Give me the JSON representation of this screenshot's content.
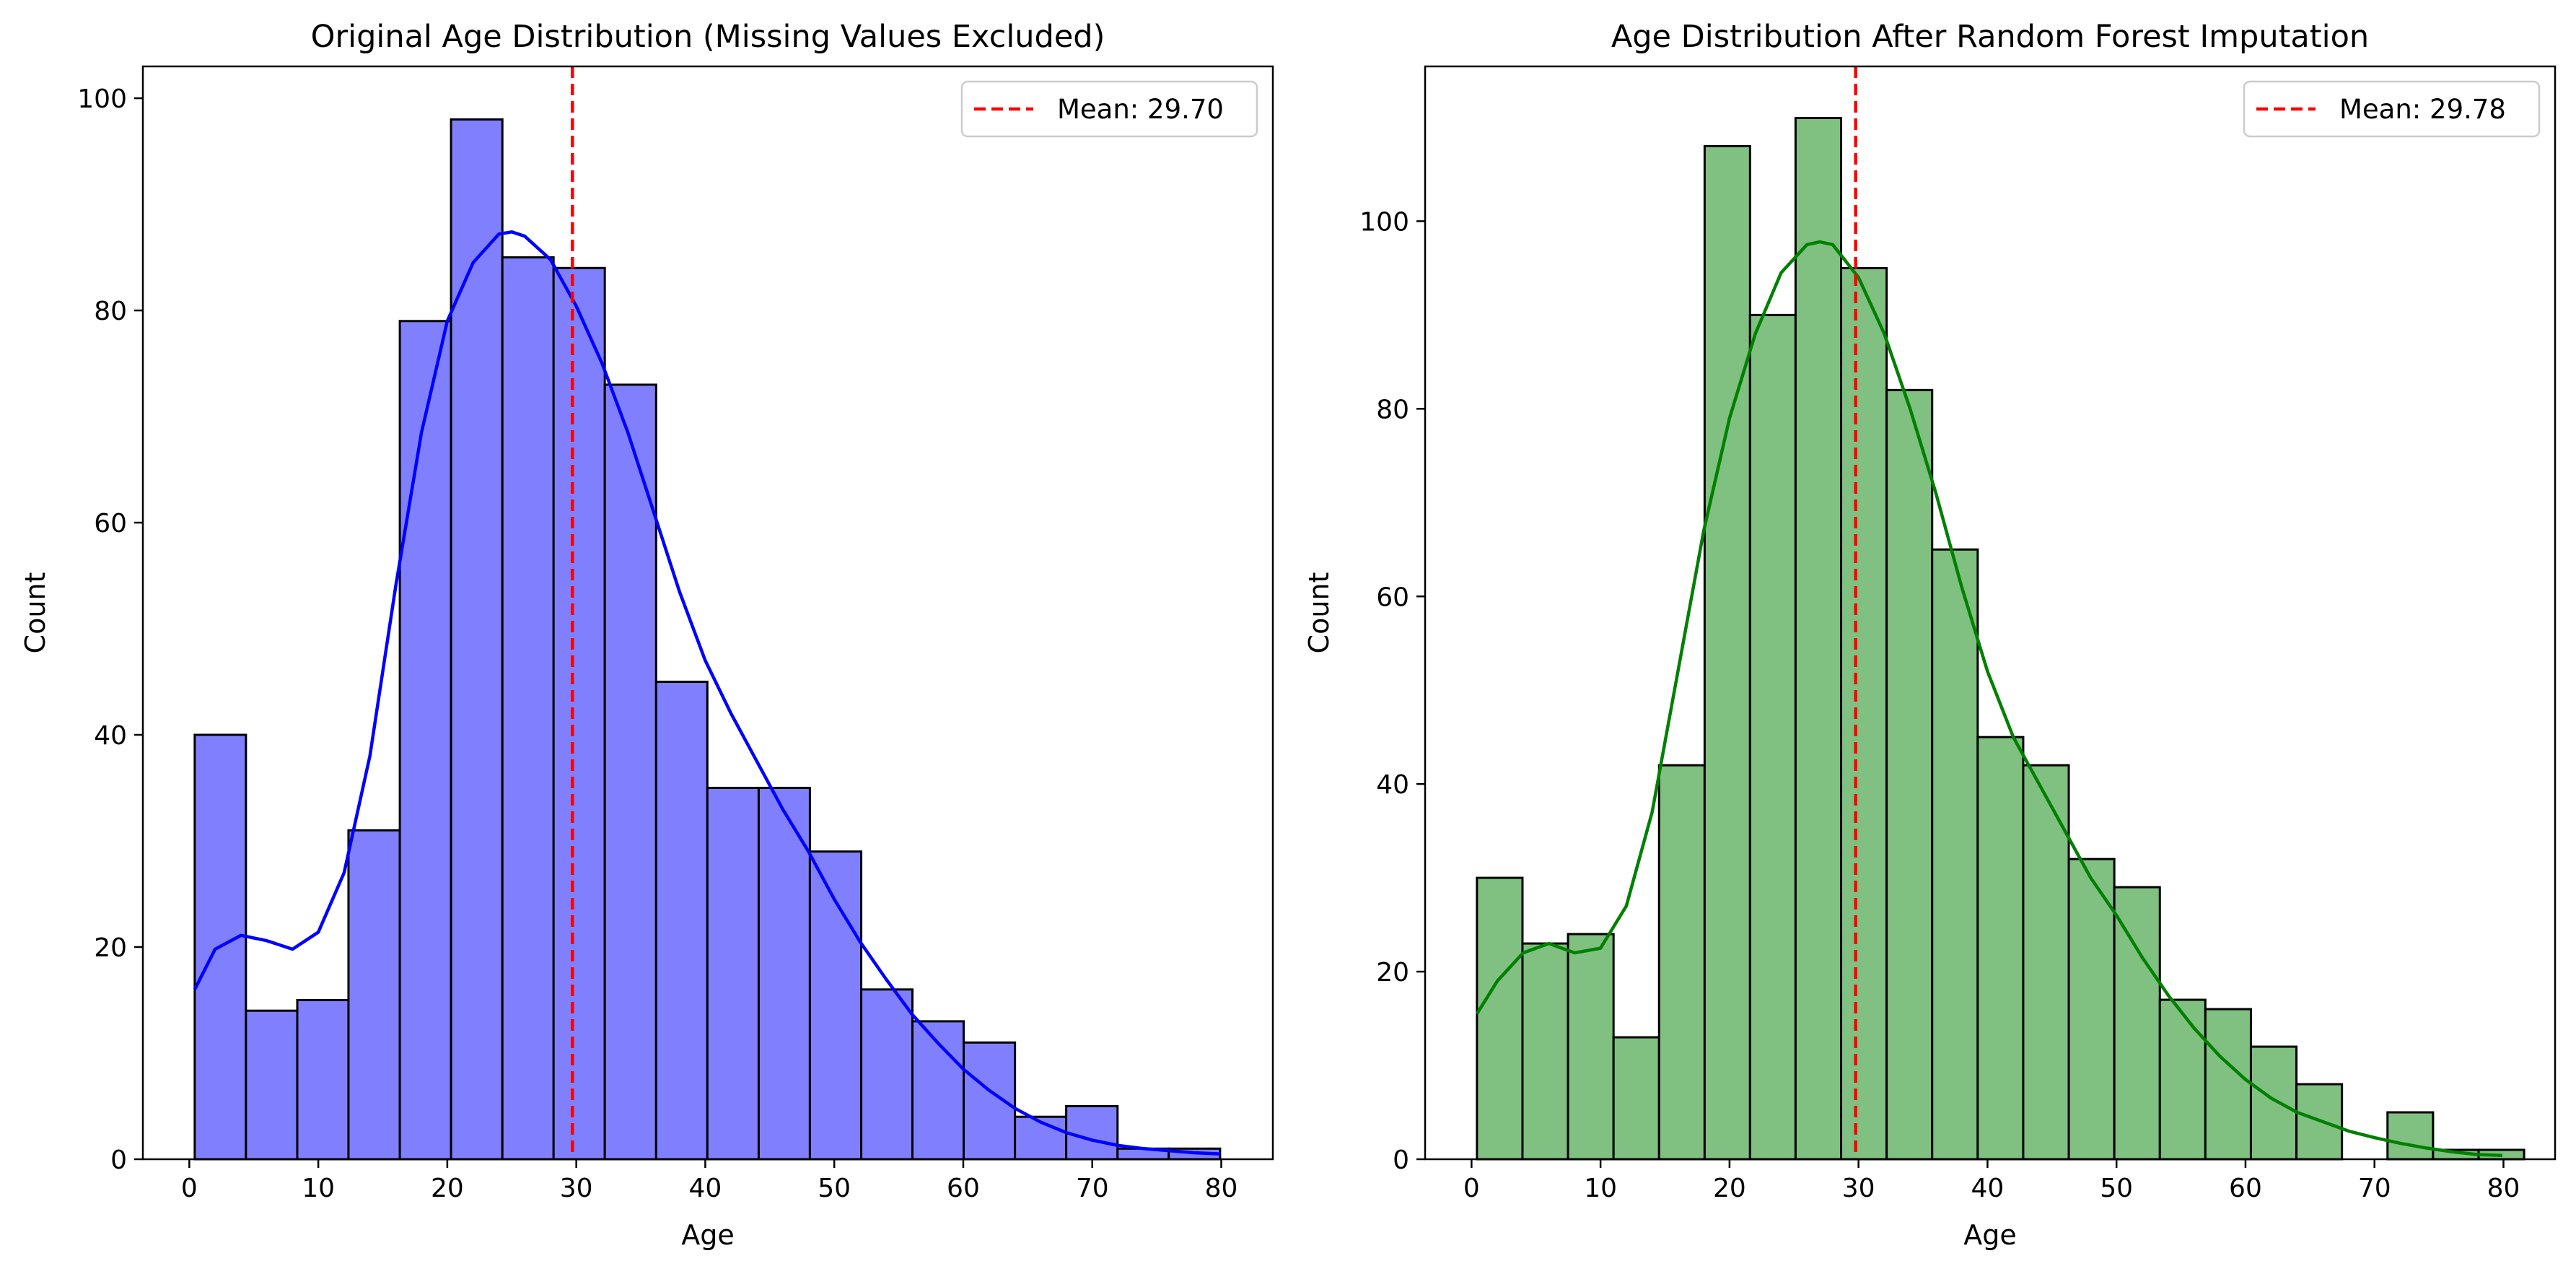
{
  "chart_data": [
    {
      "type": "bar",
      "subtype": "histogram-with-kde",
      "title": "Original Age Distribution (Missing Values Excluded)",
      "xlabel": "Age",
      "ylabel": "Count",
      "xlim": [
        -3.6,
        84.0
      ],
      "ylim": [
        0,
        103
      ],
      "xticks": [
        0,
        10,
        20,
        30,
        40,
        50,
        60,
        70,
        80
      ],
      "yticks": [
        0,
        20,
        40,
        60,
        80,
        100
      ],
      "grid": false,
      "legend_position": "top-right",
      "bar_color": "#8080ff",
      "line_color": "#0000ff",
      "bins": [
        [
          0.42,
          4.39
        ],
        [
          4.39,
          8.37
        ],
        [
          8.37,
          12.34
        ],
        [
          12.34,
          16.32
        ],
        [
          16.32,
          20.29
        ],
        [
          20.29,
          24.27
        ],
        [
          24.27,
          28.24
        ],
        [
          28.24,
          32.21
        ],
        [
          32.21,
          36.19
        ],
        [
          36.19,
          40.16
        ],
        [
          40.16,
          44.14
        ],
        [
          44.14,
          48.11
        ],
        [
          48.11,
          52.09
        ],
        [
          52.09,
          56.06
        ],
        [
          56.06,
          60.03
        ],
        [
          60.03,
          64.01
        ],
        [
          64.01,
          67.98
        ],
        [
          67.98,
          71.96
        ],
        [
          71.96,
          75.93
        ],
        [
          75.93,
          79.91
        ]
      ],
      "values": [
        40,
        14,
        15,
        31,
        79,
        98,
        85,
        84,
        73,
        45,
        35,
        35,
        29,
        16,
        13,
        11,
        4,
        5,
        1,
        1
      ],
      "kde": {
        "x": [
          0.42,
          2,
          4,
          6,
          8,
          10,
          12,
          14,
          16,
          18,
          20,
          22,
          24,
          25,
          26,
          28,
          30,
          32,
          34,
          36,
          38,
          40,
          42,
          44,
          46,
          48,
          50,
          52,
          54,
          56,
          58,
          60,
          62,
          64,
          66,
          68,
          70,
          72,
          74,
          76,
          78,
          79.91
        ],
        "y": [
          16,
          19.8,
          21.1,
          20.6,
          19.8,
          21.4,
          27,
          38,
          54,
          68.5,
          79,
          84.5,
          87.2,
          87.4,
          87,
          84.8,
          80.4,
          75,
          68.5,
          61,
          53.5,
          47,
          42,
          37.5,
          33,
          29,
          24.5,
          20.5,
          17,
          13.7,
          11,
          8.5,
          6.5,
          4.8,
          3.5,
          2.5,
          1.8,
          1.3,
          1,
          0.8,
          0.6,
          0.5
        ]
      },
      "mean_line": {
        "x": 29.7,
        "color": "#ff0000",
        "label": "Mean: 29.70"
      }
    },
    {
      "type": "bar",
      "subtype": "histogram-with-kde",
      "title": "Age Distribution After Random Forest Imputation",
      "xlabel": "Age",
      "ylabel": "Count",
      "xlim": [
        -3.6,
        84.0
      ],
      "ylim": [
        0,
        116.5
      ],
      "xticks": [
        0,
        10,
        20,
        30,
        40,
        50,
        60,
        70,
        80
      ],
      "yticks": [
        0,
        20,
        40,
        60,
        80,
        100
      ],
      "grid": false,
      "legend_position": "top-right",
      "bar_color": "#80c080",
      "line_color": "#008000",
      "bins": [
        [
          0.42,
          3.95
        ],
        [
          3.95,
          7.48
        ],
        [
          7.48,
          11.01
        ],
        [
          11.01,
          14.54
        ],
        [
          14.54,
          18.07
        ],
        [
          18.07,
          21.59
        ],
        [
          21.59,
          25.12
        ],
        [
          25.12,
          28.65
        ],
        [
          28.65,
          32.18
        ],
        [
          32.18,
          35.71
        ],
        [
          35.71,
          39.24
        ],
        [
          39.24,
          42.77
        ],
        [
          42.77,
          46.3
        ],
        [
          46.3,
          49.83
        ],
        [
          49.83,
          53.36
        ],
        [
          53.36,
          56.89
        ],
        [
          56.89,
          60.42
        ],
        [
          60.42,
          63.95
        ],
        [
          63.95,
          67.48
        ],
        [
          67.48,
          71.01
        ],
        [
          71.01,
          74.54
        ],
        [
          74.54,
          78.07
        ],
        [
          78.07,
          81.6
        ]
      ],
      "values": [
        30,
        23,
        24,
        13,
        42,
        108,
        90,
        111,
        95,
        82,
        65,
        45,
        42,
        32,
        29,
        17,
        16,
        12,
        8,
        0,
        5,
        1,
        1
      ],
      "kde": {
        "x": [
          0.42,
          2,
          4,
          6,
          8,
          10,
          12,
          14,
          16,
          18,
          20,
          22,
          24,
          26,
          27,
          28,
          30,
          32,
          34,
          36,
          38,
          40,
          42,
          44,
          46,
          48,
          50,
          52,
          54,
          56,
          58,
          60,
          62,
          64,
          66,
          68,
          70,
          72,
          74,
          76,
          78,
          79.91
        ],
        "y": [
          15.5,
          19,
          22,
          23,
          22,
          22.5,
          27,
          37,
          52,
          67,
          79,
          88,
          94.5,
          97.5,
          97.8,
          97.5,
          94,
          88,
          80,
          71,
          61,
          52,
          45,
          40,
          35,
          30,
          26,
          21.5,
          17.5,
          14,
          11,
          8.5,
          6.5,
          5,
          4,
          3,
          2.3,
          1.7,
          1.2,
          0.8,
          0.5,
          0.4
        ]
      },
      "mean_line": {
        "x": 29.78,
        "color": "#ff0000",
        "label": "Mean: 29.78"
      }
    }
  ]
}
